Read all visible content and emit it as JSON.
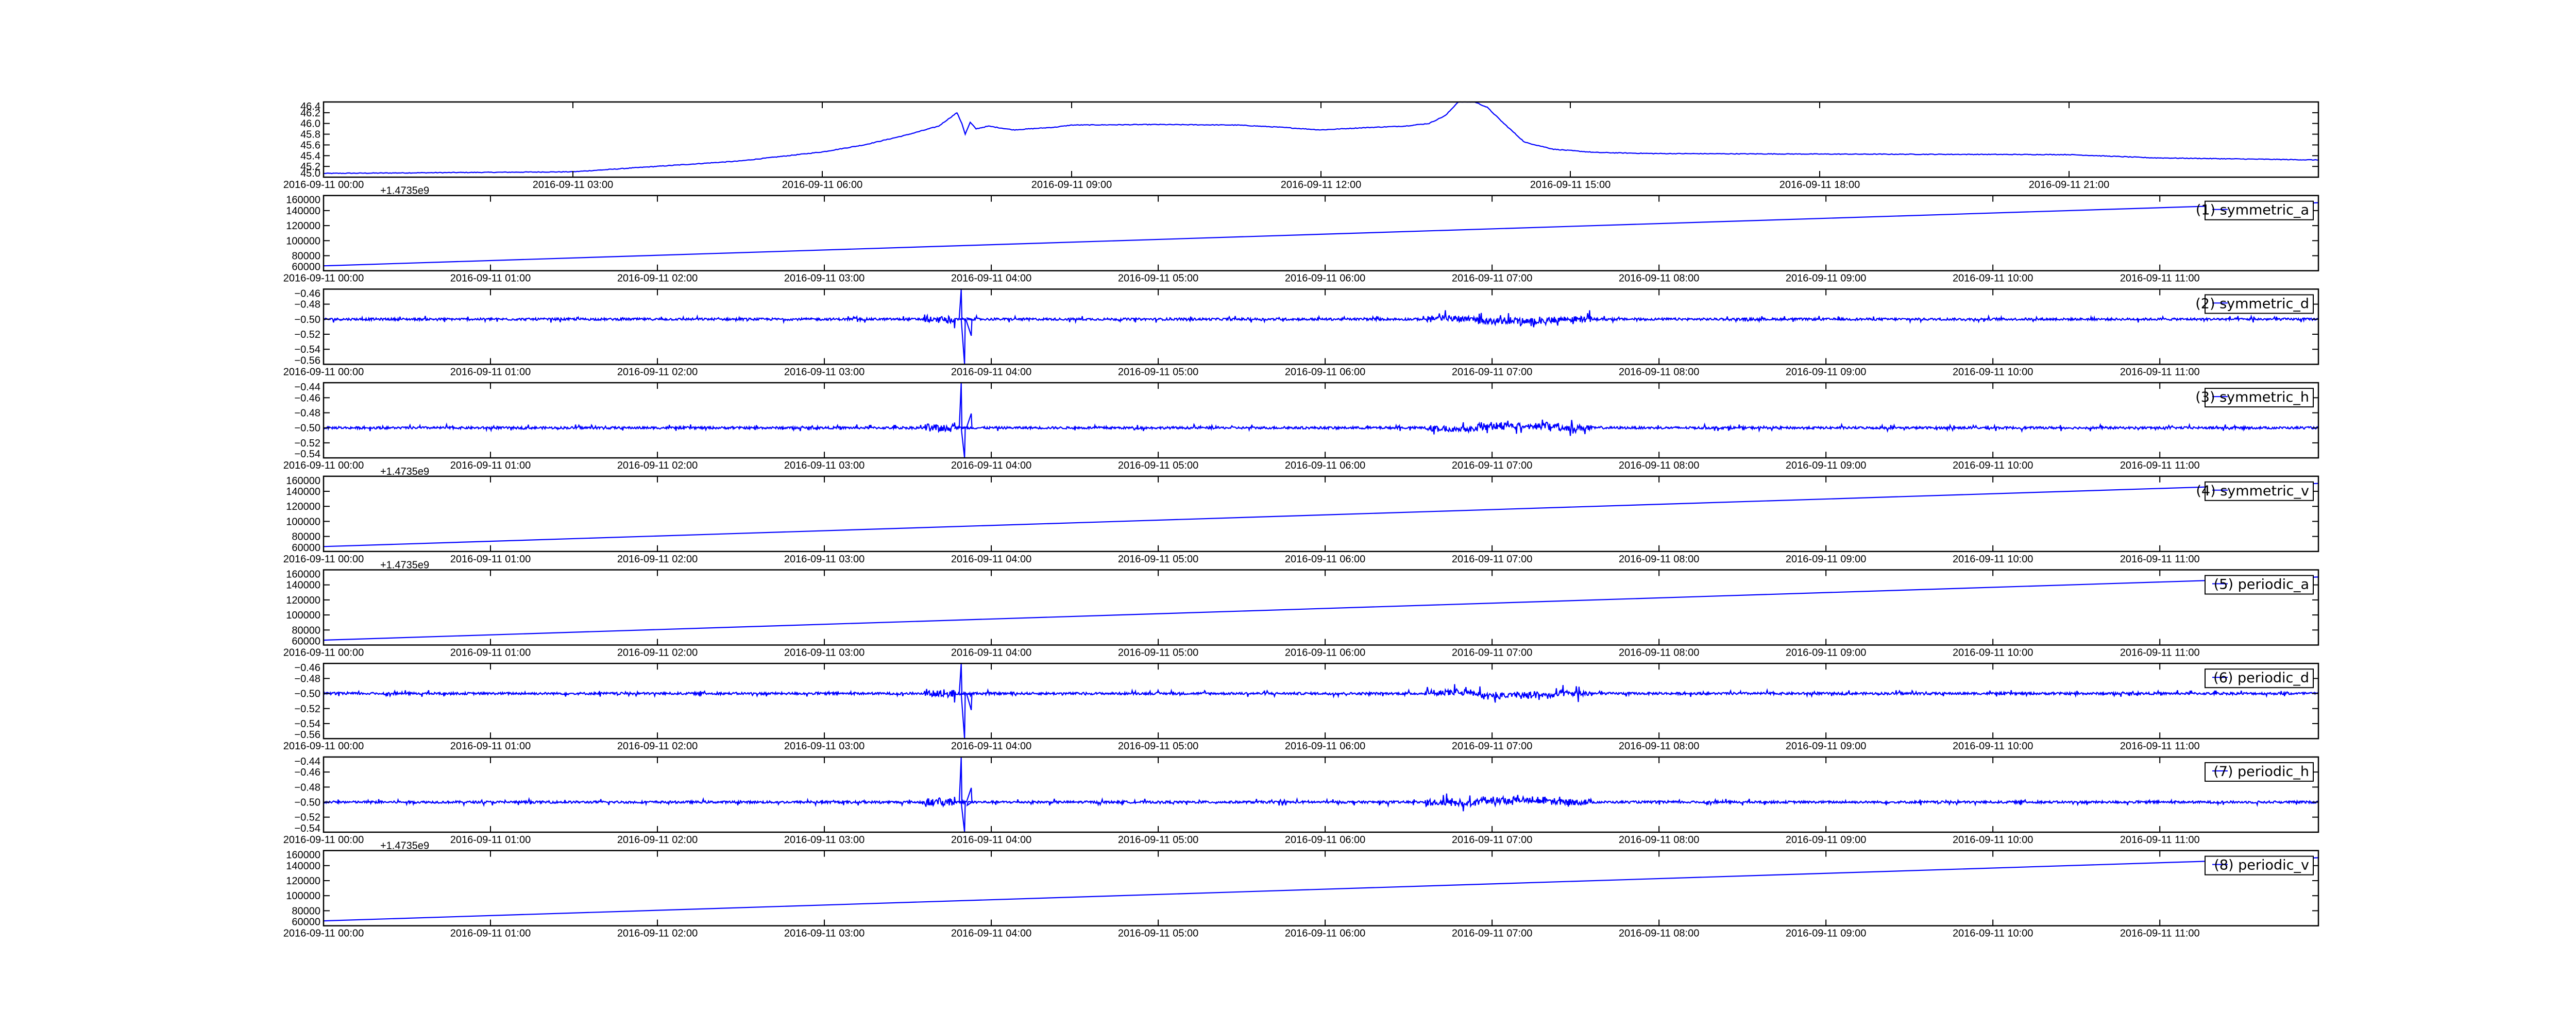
{
  "chart_data": [
    {
      "type": "line",
      "panel": 1,
      "legend": "",
      "x_unit": "hours after 2016-09-11 00:00",
      "xlim": [
        0,
        24
      ],
      "x_tick_labels": [
        "2016-09-11 00:00",
        "2016-09-11 03:00",
        "2016-09-11 06:00",
        "2016-09-11 09:00",
        "2016-09-11 12:00",
        "2016-09-11 15:00",
        "2016-09-11 18:00",
        "2016-09-11 21:00"
      ],
      "x_tick_hours": [
        0,
        3,
        6,
        9,
        12,
        15,
        18,
        21
      ],
      "ylim": [
        45.0,
        46.4
      ],
      "y_ticks": [
        "45.0",
        "45.2",
        "45.4",
        "45.6",
        "45.8",
        "46.0",
        "46.2",
        "46.4"
      ],
      "offset_text": "",
      "kind": "smooth",
      "points": [
        [
          0,
          45.07
        ],
        [
          1,
          45.08
        ],
        [
          2,
          45.09
        ],
        [
          3,
          45.1
        ],
        [
          3.5,
          45.15
        ],
        [
          4,
          45.2
        ],
        [
          5,
          45.3
        ],
        [
          6,
          45.47
        ],
        [
          6.5,
          45.6
        ],
        [
          7,
          45.78
        ],
        [
          7.4,
          45.95
        ],
        [
          7.62,
          46.2
        ],
        [
          7.68,
          46.0
        ],
        [
          7.72,
          45.8
        ],
        [
          7.78,
          46.02
        ],
        [
          7.85,
          45.9
        ],
        [
          8,
          45.95
        ],
        [
          8.3,
          45.88
        ],
        [
          8.8,
          45.93
        ],
        [
          9,
          45.97
        ],
        [
          10,
          45.98
        ],
        [
          11,
          45.97
        ],
        [
          11.5,
          45.93
        ],
        [
          12,
          45.88
        ],
        [
          12.5,
          45.92
        ],
        [
          13,
          45.95
        ],
        [
          13.3,
          46.0
        ],
        [
          13.5,
          46.15
        ],
        [
          13.65,
          46.4
        ],
        [
          13.85,
          46.4
        ],
        [
          14.0,
          46.3
        ],
        [
          14.2,
          46.0
        ],
        [
          14.45,
          45.65
        ],
        [
          14.8,
          45.52
        ],
        [
          15.3,
          45.46
        ],
        [
          16,
          45.44
        ],
        [
          18,
          45.43
        ],
        [
          21,
          45.42
        ],
        [
          22,
          45.36
        ],
        [
          24,
          45.32
        ]
      ]
    },
    {
      "type": "line",
      "panel": 2,
      "legend": "(1) symmetric_a",
      "kind": "linear",
      "xlim": [
        0,
        11.95
      ],
      "ylim": [
        60000,
        160000
      ],
      "y_ticks": [
        "60000",
        "80000",
        "100000",
        "120000",
        "140000",
        "160000"
      ],
      "offset_text": "+1.4735e9",
      "points": [
        [
          0,
          66500
        ],
        [
          11.95,
          150500
        ]
      ]
    },
    {
      "type": "line",
      "panel": 3,
      "legend": "(2) symmetric_d",
      "kind": "noise",
      "xlim": [
        0,
        11.95
      ],
      "ylim": [
        -0.56,
        -0.46
      ],
      "y_ticks": [
        "−0.56",
        "−0.54",
        "−0.52",
        "−0.50",
        "−0.48",
        "−0.46"
      ],
      "offset_text": "",
      "baseline": -0.5,
      "spikes": [
        [
          3.78,
          -0.512
        ],
        [
          3.82,
          -0.46
        ],
        [
          3.84,
          -0.56
        ],
        [
          3.88,
          -0.522
        ],
        [
          6.8,
          -0.496
        ],
        [
          6.95,
          -0.508
        ]
      ]
    },
    {
      "type": "line",
      "panel": 4,
      "legend": "(3) symmetric_h",
      "kind": "noise",
      "xlim": [
        0,
        11.95
      ],
      "ylim": [
        -0.54,
        -0.44
      ],
      "y_ticks": [
        "−0.54",
        "−0.52",
        "−0.50",
        "−0.48",
        "−0.46",
        "−0.44"
      ],
      "offset_text": "",
      "baseline": -0.5,
      "spikes": [
        [
          3.78,
          -0.493
        ],
        [
          3.82,
          -0.44
        ],
        [
          3.84,
          -0.54
        ],
        [
          3.88,
          -0.481
        ],
        [
          6.8,
          -0.503
        ],
        [
          6.95,
          -0.492
        ]
      ]
    },
    {
      "type": "line",
      "panel": 5,
      "legend": "(4) symmetric_v",
      "kind": "linear",
      "xlim": [
        0,
        11.95
      ],
      "ylim": [
        60000,
        160000
      ],
      "y_ticks": [
        "60000",
        "80000",
        "100000",
        "120000",
        "140000",
        "160000"
      ],
      "offset_text": "+1.4735e9",
      "points": [
        [
          0,
          66500
        ],
        [
          11.95,
          150500
        ]
      ]
    },
    {
      "type": "line",
      "panel": 6,
      "legend": "(5) periodic_a",
      "kind": "linear",
      "xlim": [
        0,
        11.95
      ],
      "ylim": [
        60000,
        160000
      ],
      "y_ticks": [
        "60000",
        "80000",
        "100000",
        "120000",
        "140000",
        "160000"
      ],
      "offset_text": "+1.4735e9",
      "points": [
        [
          0,
          66500
        ],
        [
          11.95,
          150500
        ]
      ]
    },
    {
      "type": "line",
      "panel": 7,
      "legend": "(6) periodic_d",
      "kind": "noise",
      "xlim": [
        0,
        11.95
      ],
      "ylim": [
        -0.56,
        -0.46
      ],
      "y_ticks": [
        "−0.56",
        "−0.54",
        "−0.52",
        "−0.50",
        "−0.48",
        "−0.46"
      ],
      "offset_text": "",
      "baseline": -0.5,
      "spikes": [
        [
          3.78,
          -0.512
        ],
        [
          3.82,
          -0.46
        ],
        [
          3.84,
          -0.56
        ],
        [
          3.88,
          -0.522
        ],
        [
          6.8,
          -0.496
        ],
        [
          6.95,
          -0.508
        ]
      ]
    },
    {
      "type": "line",
      "panel": 8,
      "legend": "(7) periodic_h",
      "kind": "noise",
      "xlim": [
        0,
        11.95
      ],
      "ylim": [
        -0.54,
        -0.44
      ],
      "y_ticks": [
        "−0.54",
        "−0.52",
        "−0.50",
        "−0.48",
        "−0.46",
        "−0.44"
      ],
      "offset_text": "",
      "baseline": -0.5,
      "spikes": [
        [
          3.78,
          -0.493
        ],
        [
          3.82,
          -0.44
        ],
        [
          3.84,
          -0.54
        ],
        [
          3.88,
          -0.481
        ],
        [
          6.8,
          -0.503
        ],
        [
          6.95,
          -0.492
        ]
      ]
    },
    {
      "type": "line",
      "panel": 9,
      "legend": "(8) periodic_v",
      "kind": "linear",
      "xlim": [
        0,
        11.95
      ],
      "ylim": [
        60000,
        160000
      ],
      "y_ticks": [
        "60000",
        "80000",
        "100000",
        "120000",
        "140000",
        "160000"
      ],
      "offset_text": "+1.4735e9",
      "points": [
        [
          0,
          66500
        ],
        [
          11.95,
          150500
        ]
      ]
    }
  ],
  "shared_x_tick_labels": [
    "2016-09-11 00:00",
    "2016-09-11 01:00",
    "2016-09-11 02:00",
    "2016-09-11 03:00",
    "2016-09-11 04:00",
    "2016-09-11 05:00",
    "2016-09-11 06:00",
    "2016-09-11 07:00",
    "2016-09-11 08:00",
    "2016-09-11 09:00",
    "2016-09-11 10:00",
    "2016-09-11 11:00"
  ],
  "shared_x_tick_hours": [
    0,
    1,
    2,
    3,
    4,
    5,
    6,
    7,
    8,
    9,
    10,
    11
  ],
  "colors": {
    "line": "#0000ff",
    "axes": "#000000",
    "background": "#ffffff"
  },
  "grid": false
}
